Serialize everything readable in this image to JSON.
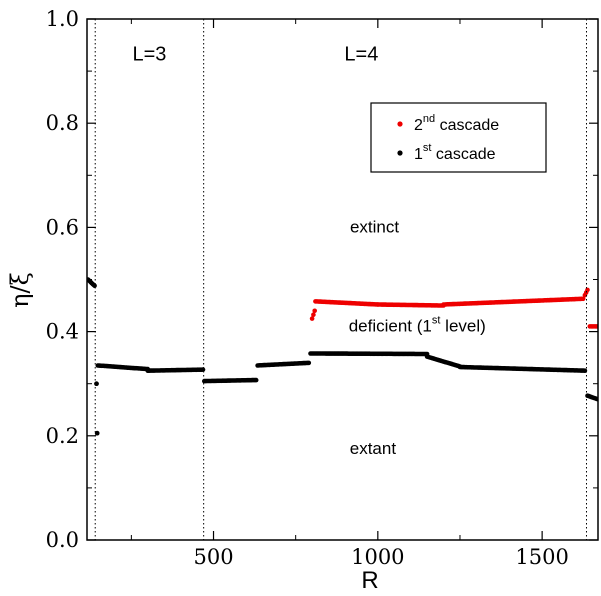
{
  "chart_data": {
    "type": "scatter",
    "xlabel": "R",
    "ylabel": "η/ξ",
    "xlim": [
      115,
      1670
    ],
    "ylim": [
      0.0,
      1.0
    ],
    "x_ticks": [
      {
        "v": 500,
        "label": "500"
      },
      {
        "v": 1000,
        "label": "1000"
      },
      {
        "v": 1500,
        "label": "1500"
      }
    ],
    "y_ticks": [
      {
        "v": 0.0,
        "label": "0.0"
      },
      {
        "v": 0.2,
        "label": "0.2"
      },
      {
        "v": 0.4,
        "label": "0.4"
      },
      {
        "v": 0.6,
        "label": "0.6"
      },
      {
        "v": 0.8,
        "label": "0.8"
      },
      {
        "v": 1.0,
        "label": "1.0"
      }
    ],
    "grid": false,
    "legend_position": "top-right",
    "section_boundaries": [
      140,
      470,
      1635
    ],
    "section_labels": [
      {
        "text": "L=3",
        "x": 305,
        "y": 0.92
      },
      {
        "text": "L=4",
        "x": 950,
        "y": 0.92
      }
    ],
    "region_labels": [
      {
        "text": "extinct",
        "sup": "",
        "rest": "",
        "x": 990,
        "y": 0.59
      },
      {
        "text": "deficient (1",
        "sup": "st",
        "rest": " level)",
        "x": 1120,
        "y": 0.4
      },
      {
        "text": "extant",
        "sup": "",
        "rest": "",
        "x": 985,
        "y": 0.165
      }
    ],
    "series": [
      {
        "name_main": "2",
        "name_sup": "nd",
        "name_rest": " cascade",
        "color": "#ee0000",
        "segments": [
          {
            "x0": 800,
            "x1": 808,
            "y0": 0.425,
            "y1": 0.44,
            "step": 4
          },
          {
            "x0": 810,
            "x1": 1000,
            "y0": 0.458,
            "y1": 0.452,
            "step": 4
          },
          {
            "x0": 1000,
            "x1": 1200,
            "y0": 0.452,
            "y1": 0.45,
            "step": 4
          },
          {
            "x0": 1200,
            "x1": 1625,
            "y0": 0.452,
            "y1": 0.463,
            "step": 4
          },
          {
            "x0": 1630,
            "x1": 1638,
            "y0": 0.47,
            "y1": 0.48,
            "step": 4
          },
          {
            "x0": 1645,
            "x1": 1670,
            "y0": 0.41,
            "y1": 0.41,
            "step": 4
          }
        ]
      },
      {
        "name_main": "1",
        "name_sup": "st",
        "name_rest": " cascade",
        "color": "#000000",
        "segments": [
          {
            "x0": 118,
            "x1": 138,
            "y0": 0.5,
            "y1": 0.488,
            "step": 3
          },
          {
            "x0": 144,
            "x1": 144,
            "y0": 0.3,
            "y1": 0.3,
            "step": 4
          },
          {
            "x0": 146,
            "x1": 146,
            "y0": 0.205,
            "y1": 0.205,
            "step": 4
          },
          {
            "x0": 148,
            "x1": 300,
            "y0": 0.335,
            "y1": 0.328,
            "step": 4
          },
          {
            "x0": 300,
            "x1": 468,
            "y0": 0.325,
            "y1": 0.327,
            "step": 4
          },
          {
            "x0": 472,
            "x1": 630,
            "y0": 0.305,
            "y1": 0.307,
            "step": 4
          },
          {
            "x0": 634,
            "x1": 790,
            "y0": 0.335,
            "y1": 0.34,
            "step": 4
          },
          {
            "x0": 795,
            "x1": 1150,
            "y0": 0.358,
            "y1": 0.357,
            "step": 4
          },
          {
            "x0": 1150,
            "x1": 1250,
            "y0": 0.352,
            "y1": 0.333,
            "step": 4
          },
          {
            "x0": 1250,
            "x1": 1630,
            "y0": 0.332,
            "y1": 0.325,
            "step": 4
          },
          {
            "x0": 1638,
            "x1": 1670,
            "y0": 0.277,
            "y1": 0.27,
            "step": 4
          }
        ]
      }
    ]
  }
}
